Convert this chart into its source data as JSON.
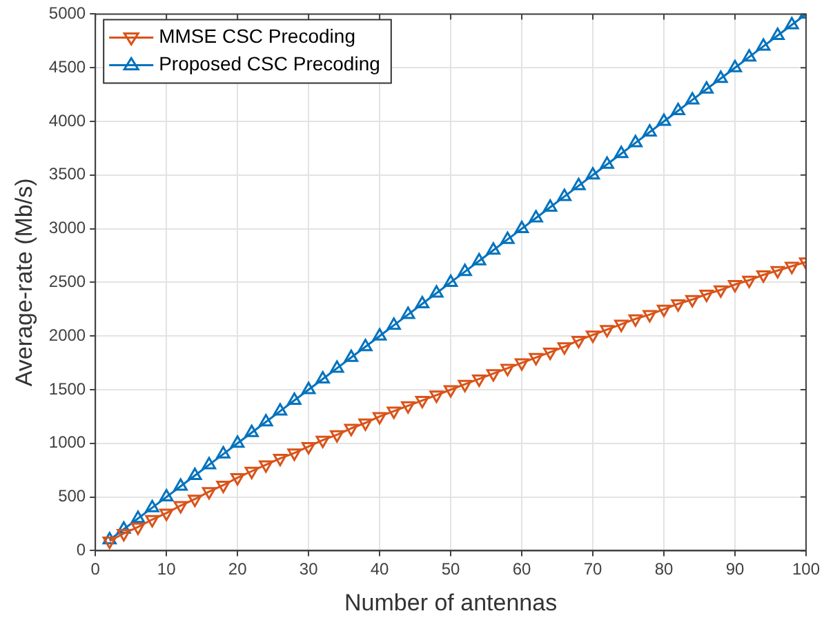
{
  "chart_data": {
    "type": "line",
    "xlabel": "Number of antennas",
    "ylabel": "Average-rate (Mb/s)",
    "x": [
      2,
      4,
      6,
      8,
      10,
      12,
      14,
      16,
      18,
      20,
      22,
      24,
      26,
      28,
      30,
      32,
      34,
      36,
      38,
      40,
      42,
      44,
      46,
      48,
      50,
      52,
      54,
      56,
      58,
      60,
      62,
      64,
      66,
      68,
      70,
      72,
      74,
      76,
      78,
      80,
      82,
      84,
      86,
      88,
      90,
      92,
      94,
      96,
      98,
      100
    ],
    "series": [
      {
        "name": "MMSE CSC Precoding",
        "color": "#d95319",
        "marker": "triangle-down",
        "values": [
          90,
          160,
          220,
          290,
          350,
          420,
          480,
          550,
          610,
          680,
          740,
          800,
          860,
          910,
          970,
          1030,
          1080,
          1140,
          1190,
          1250,
          1300,
          1350,
          1400,
          1450,
          1500,
          1550,
          1600,
          1650,
          1700,
          1750,
          1800,
          1850,
          1900,
          1960,
          2010,
          2060,
          2110,
          2160,
          2200,
          2250,
          2300,
          2340,
          2390,
          2430,
          2480,
          2520,
          2570,
          2610,
          2650,
          2690
        ]
      },
      {
        "name": "Proposed CSC Precoding",
        "color": "#0072bd",
        "marker": "triangle",
        "values": [
          100,
          200,
          300,
          400,
          500,
          600,
          700,
          800,
          900,
          1000,
          1100,
          1200,
          1300,
          1400,
          1500,
          1600,
          1700,
          1800,
          1900,
          2000,
          2100,
          2200,
          2300,
          2400,
          2500,
          2600,
          2700,
          2800,
          2900,
          3000,
          3100,
          3200,
          3300,
          3400,
          3500,
          3600,
          3700,
          3800,
          3900,
          4000,
          4100,
          4200,
          4300,
          4400,
          4500,
          4600,
          4700,
          4800,
          4900,
          5000
        ]
      }
    ],
    "xlim": [
      0,
      100
    ],
    "xticks": [
      0,
      10,
      20,
      30,
      40,
      50,
      60,
      70,
      80,
      90,
      100
    ],
    "ylim": [
      0,
      5000
    ],
    "yticks": [
      0,
      500,
      1000,
      1500,
      2000,
      2500,
      3000,
      3500,
      4000,
      4500,
      5000
    ],
    "grid": true,
    "legend": "top left",
    "line_style": "solid"
  }
}
